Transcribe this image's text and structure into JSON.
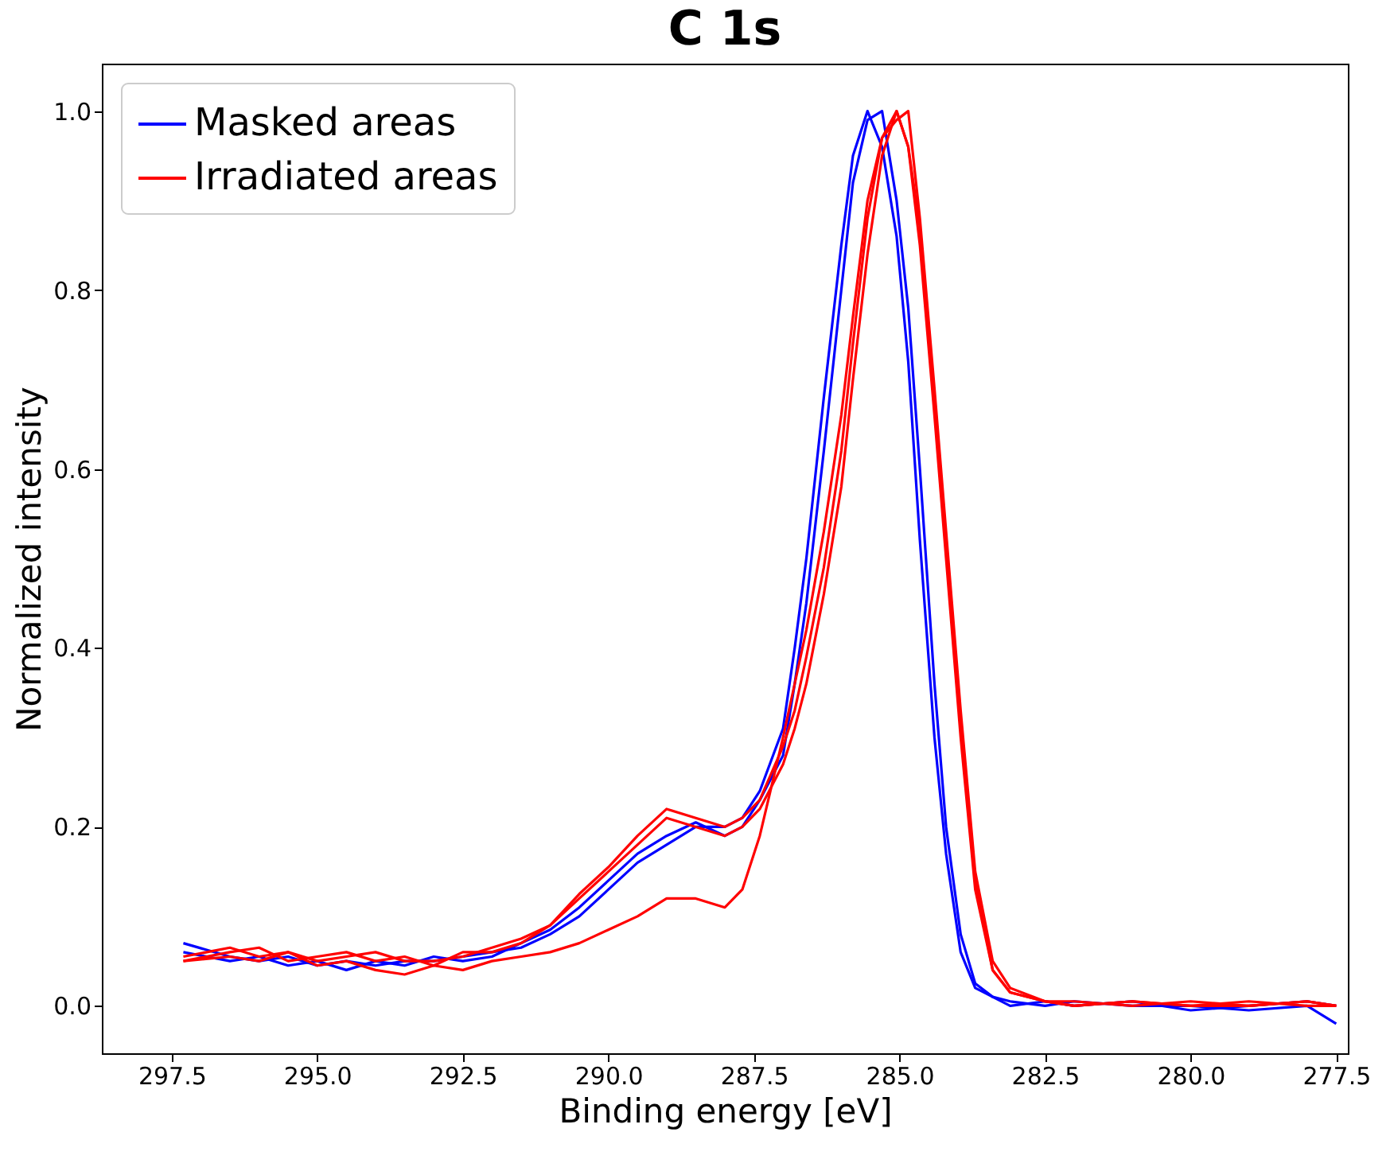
{
  "chart_data": {
    "type": "line",
    "title": "C 1s",
    "xlabel": "Binding energy [eV]",
    "ylabel": "Normalized intensity",
    "xlim": [
      298.7,
      277.3
    ],
    "ylim": [
      -0.053,
      1.053
    ],
    "xticks": [
      {
        "value": 297.5,
        "label": "297.5"
      },
      {
        "value": 295,
        "label": "295.0"
      },
      {
        "value": 292.5,
        "label": "292.5"
      },
      {
        "value": 290,
        "label": "290.0"
      },
      {
        "value": 287.5,
        "label": "287.5"
      },
      {
        "value": 285,
        "label": "285.0"
      },
      {
        "value": 282.5,
        "label": "282.5"
      },
      {
        "value": 280,
        "label": "280.0"
      },
      {
        "value": 277.5,
        "label": "277.5"
      }
    ],
    "yticks": [
      {
        "value": 0,
        "label": "0.0"
      },
      {
        "value": 0.2,
        "label": "0.2"
      },
      {
        "value": 0.4,
        "label": "0.4"
      },
      {
        "value": 0.6,
        "label": "0.6"
      },
      {
        "value": 0.8,
        "label": "0.8"
      },
      {
        "value": 1,
        "label": "1.0"
      }
    ],
    "grid": false,
    "legend": "top left",
    "marker": "none",
    "line_style": "solid",
    "x": [
      297.3,
      296.5,
      296,
      295.5,
      295,
      294.5,
      294,
      293.5,
      293,
      292.5,
      292,
      291.5,
      291,
      290.5,
      290,
      289.5,
      289,
      288.5,
      288,
      287.7,
      287.4,
      287,
      286.8,
      286.6,
      286.3,
      286,
      285.8,
      285.55,
      285.3,
      285.05,
      284.85,
      284.65,
      284.4,
      284.2,
      283.95,
      283.7,
      283.4,
      283.1,
      282.5,
      282,
      281,
      280,
      279,
      278,
      277.5
    ],
    "series": [
      {
        "name": "Masked areas",
        "color": "#0000ff",
        "values": [
          0.07,
          0.055,
          0.05,
          0.055,
          0.045,
          0.05,
          0.045,
          0.05,
          0.05,
          0.055,
          0.06,
          0.065,
          0.08,
          0.1,
          0.13,
          0.16,
          0.18,
          0.2,
          0.2,
          0.21,
          0.24,
          0.31,
          0.4,
          0.5,
          0.68,
          0.85,
          0.95,
          1.0,
          0.96,
          0.86,
          0.72,
          0.52,
          0.3,
          0.17,
          0.06,
          0.02,
          0.01,
          0.005,
          0.0,
          0.005,
          0.0,
          0.0,
          -0.005,
          0.0,
          -0.02
        ]
      },
      {
        "color": "#0000ff",
        "values": [
          0.06,
          0.05,
          0.055,
          0.045,
          0.05,
          0.04,
          0.05,
          0.045,
          0.055,
          0.05,
          0.055,
          0.07,
          0.085,
          0.11,
          0.14,
          0.17,
          0.19,
          0.205,
          0.19,
          0.2,
          0.23,
          0.28,
          0.36,
          0.45,
          0.62,
          0.8,
          0.92,
          0.99,
          1.0,
          0.9,
          0.78,
          0.6,
          0.36,
          0.2,
          0.08,
          0.025,
          0.01,
          0.0,
          0.005,
          0.0,
          0.005,
          -0.005,
          0.0,
          0.005,
          0.0
        ]
      },
      {
        "name": "Irradiated areas",
        "color": "#ff0000",
        "values": [
          0.05,
          0.06,
          0.065,
          0.05,
          0.055,
          0.06,
          0.05,
          0.055,
          0.045,
          0.06,
          0.06,
          0.07,
          0.09,
          0.12,
          0.15,
          0.18,
          0.21,
          0.2,
          0.19,
          0.2,
          0.22,
          0.27,
          0.31,
          0.36,
          0.46,
          0.58,
          0.7,
          0.84,
          0.95,
          1.0,
          0.96,
          0.85,
          0.66,
          0.5,
          0.3,
          0.13,
          0.04,
          0.015,
          0.005,
          0.005,
          0.0,
          0.005,
          0.0,
          0.005,
          0.0
        ]
      },
      {
        "color": "#ff0000",
        "values": [
          0.055,
          0.065,
          0.055,
          0.06,
          0.05,
          0.055,
          0.06,
          0.05,
          0.05,
          0.055,
          0.065,
          0.075,
          0.09,
          0.125,
          0.155,
          0.19,
          0.22,
          0.21,
          0.2,
          0.21,
          0.23,
          0.29,
          0.33,
          0.39,
          0.49,
          0.62,
          0.74,
          0.88,
          0.97,
          0.99,
          1.0,
          0.88,
          0.69,
          0.53,
          0.33,
          0.15,
          0.05,
          0.02,
          0.005,
          0.0,
          0.005,
          0.0,
          0.005,
          0.0,
          0.0
        ]
      },
      {
        "color": "#ff0000",
        "values": [
          0.05,
          0.055,
          0.05,
          0.06,
          0.045,
          0.05,
          0.04,
          0.035,
          0.045,
          0.04,
          0.05,
          0.055,
          0.06,
          0.07,
          0.085,
          0.1,
          0.12,
          0.12,
          0.11,
          0.13,
          0.19,
          0.3,
          0.36,
          0.42,
          0.53,
          0.66,
          0.77,
          0.9,
          0.97,
          1.0,
          0.96,
          0.87,
          0.67,
          0.51,
          0.31,
          0.14,
          0.04,
          0.015,
          0.005,
          0.0,
          0.005,
          0.0,
          0.0,
          0.005,
          0.0
        ]
      }
    ]
  }
}
